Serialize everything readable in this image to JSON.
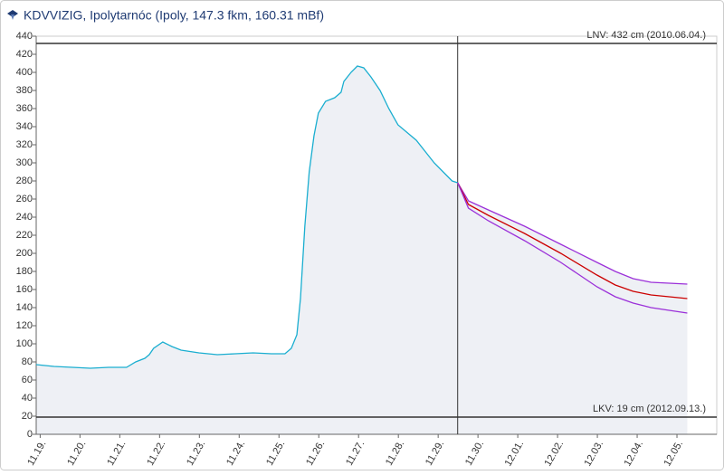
{
  "chart_data": {
    "type": "line",
    "title": "KDVVIZIG, Ipolytarnóc (Ipoly, 147.3 fkm, 160.31 mBf)",
    "xlim": [
      -0.1,
      17
    ],
    "ylim": [
      0,
      440
    ],
    "yticks": [
      0,
      20,
      40,
      60,
      80,
      100,
      120,
      140,
      160,
      180,
      200,
      220,
      240,
      260,
      280,
      300,
      320,
      340,
      360,
      380,
      400,
      420,
      440
    ],
    "xticks": [
      {
        "value": 0,
        "label": "11.19."
      },
      {
        "value": 1,
        "label": "11.20."
      },
      {
        "value": 2,
        "label": "11.21."
      },
      {
        "value": 3,
        "label": "11.22."
      },
      {
        "value": 4,
        "label": "11.23."
      },
      {
        "value": 5,
        "label": "11.24."
      },
      {
        "value": 6,
        "label": "11.25."
      },
      {
        "value": 7,
        "label": "11.26."
      },
      {
        "value": 8,
        "label": "11.27."
      },
      {
        "value": 9,
        "label": "11.28."
      },
      {
        "value": 10,
        "label": "11.29."
      },
      {
        "value": 11,
        "label": "11.30."
      },
      {
        "value": 12,
        "label": "12.01."
      },
      {
        "value": 13,
        "label": "12.02."
      },
      {
        "value": 14,
        "label": "12.03."
      },
      {
        "value": 15,
        "label": "12.04."
      },
      {
        "value": 16,
        "label": "12.05."
      }
    ],
    "grid": false,
    "now_x": 10.49,
    "thresholds": [
      {
        "value": 432,
        "label": "LNV: 432 cm (2010.06.04.)"
      },
      {
        "value": 19,
        "label": "LKV: 19 cm (2012.09.13.)"
      }
    ],
    "series": [
      {
        "color": "#1aaed0",
        "x": [
          -0.1,
          0.35,
          0.81,
          1.26,
          1.72,
          2.17,
          2.4,
          2.63,
          2.74,
          2.85,
          3.08,
          3.31,
          3.54,
          3.99,
          4.45,
          4.9,
          5.35,
          5.81,
          6.15,
          6.31,
          6.45,
          6.54,
          6.65,
          6.76,
          6.88,
          6.99,
          7.17,
          7.4,
          7.56,
          7.63,
          7.81,
          7.97,
          8.13,
          8.31,
          8.54,
          8.76,
          8.99,
          9.45,
          9.9,
          10.35,
          10.49
        ],
        "values": [
          77,
          75,
          74,
          73,
          74,
          74,
          80,
          84,
          88,
          95,
          102,
          97,
          93,
          90,
          88,
          89,
          90,
          89,
          89,
          95,
          110,
          150,
          230,
          290,
          330,
          355,
          368,
          372,
          378,
          390,
          400,
          407,
          405,
          395,
          380,
          360,
          342,
          325,
          300,
          280,
          278
        ]
      },
      {
        "color": "#9b30d9",
        "x": [
          10.49,
          10.76,
          11.26,
          12.17,
          13.08,
          13.99,
          14.45,
          14.9,
          15.35,
          16.26
        ],
        "values": [
          278,
          258,
          248,
          230,
          210,
          190,
          180,
          172,
          168,
          166
        ]
      },
      {
        "color": "#cc0000",
        "x": [
          10.49,
          10.76,
          11.26,
          12.17,
          13.08,
          13.99,
          14.45,
          14.9,
          15.35,
          16.26
        ],
        "values": [
          278,
          254,
          242,
          222,
          200,
          176,
          165,
          158,
          154,
          150
        ]
      },
      {
        "color": "#9b30d9",
        "x": [
          10.49,
          10.76,
          11.26,
          12.17,
          13.08,
          13.99,
          14.45,
          14.9,
          15.35,
          16.26
        ],
        "values": [
          278,
          250,
          236,
          214,
          190,
          163,
          152,
          145,
          140,
          134
        ]
      }
    ]
  }
}
